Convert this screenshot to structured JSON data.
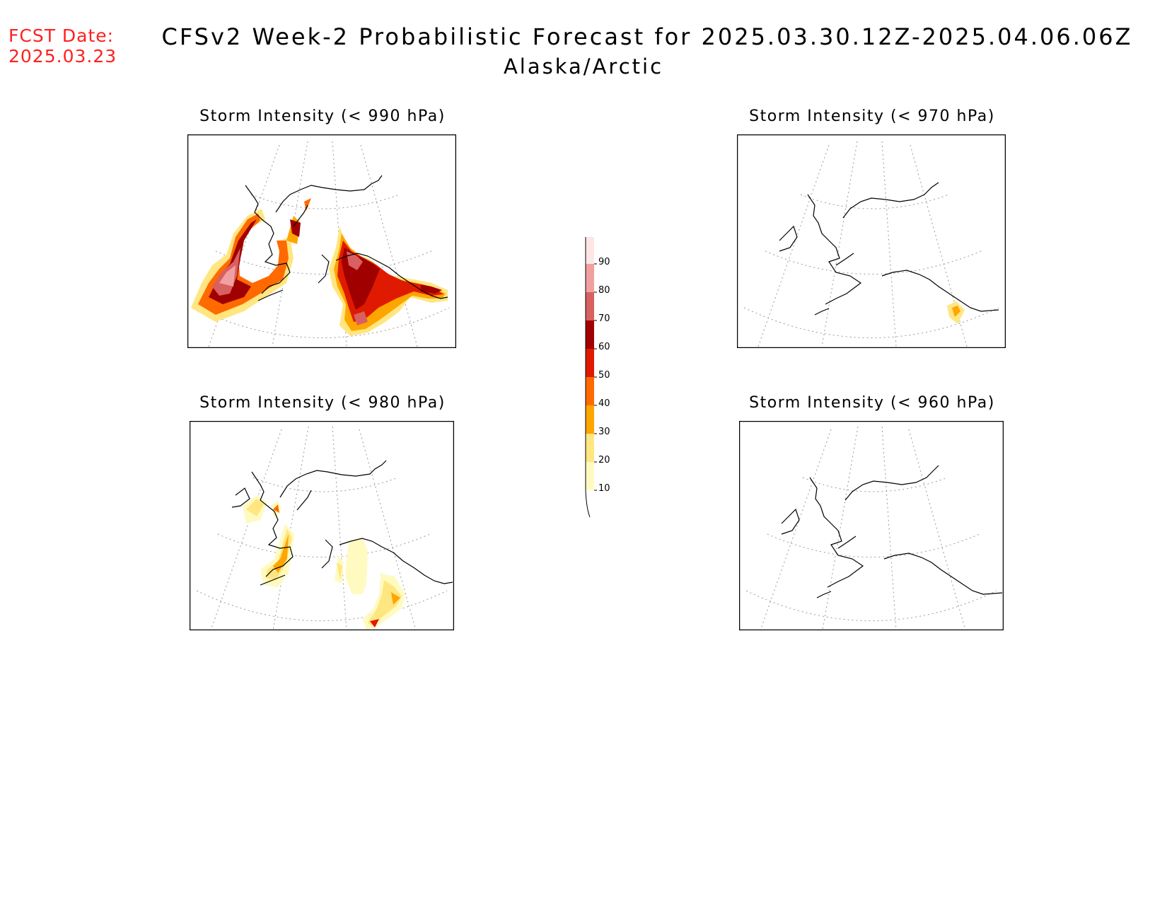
{
  "fcst_date_label": "FCST Date:",
  "fcst_date": "2025.03.23",
  "title": "CFSv2 Week-2 Probabilistic Forecast for 2025.03.30.12Z-2025.04.06.06Z",
  "subtitle": "Alaska/Arctic",
  "panels": [
    {
      "title": "Storm Intensity (< 990 hPa)"
    },
    {
      "title": "Storm Intensity (< 970 hPa)"
    },
    {
      "title": "Storm Intensity (< 980 hPa)"
    },
    {
      "title": "Storm Intensity (< 960 hPa)"
    }
  ],
  "colorbar": {
    "ticks": [
      "10",
      "20",
      "30",
      "40",
      "50",
      "60",
      "70",
      "80",
      "90"
    ],
    "colors": {
      "c10": "#fffac0",
      "c20": "#ffe680",
      "c30": "#ffa500",
      "c40": "#ff6a00",
      "c50": "#e01a00",
      "c60": "#a00000",
      "c70": "#d86060",
      "c80": "#f0a0a0",
      "c90": "#fde6e6"
    }
  }
}
